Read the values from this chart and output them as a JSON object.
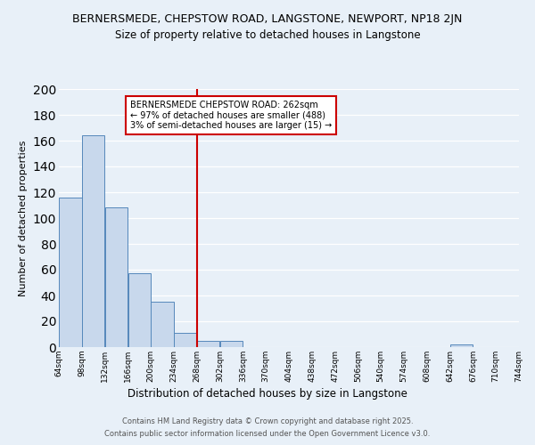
{
  "title": "BERNERSMEDE, CHEPSTOW ROAD, LANGSTONE, NEWPORT, NP18 2JN",
  "subtitle": "Size of property relative to detached houses in Langstone",
  "xlabel": "Distribution of detached houses by size in Langstone",
  "ylabel": "Number of detached properties",
  "bar_values": [
    116,
    164,
    108,
    57,
    35,
    11,
    5,
    5,
    0,
    0,
    0,
    0,
    0,
    0,
    0,
    0,
    0,
    2,
    0,
    0
  ],
  "bin_edges": [
    64,
    98,
    132,
    166,
    200,
    234,
    268,
    302,
    336,
    370,
    404,
    438,
    472,
    506,
    540,
    574,
    608,
    642,
    676,
    710,
    744
  ],
  "tick_labels": [
    "64sqm",
    "98sqm",
    "132sqm",
    "166sqm",
    "200sqm",
    "234sqm",
    "268sqm",
    "302sqm",
    "336sqm",
    "370sqm",
    "404sqm",
    "438sqm",
    "472sqm",
    "506sqm",
    "540sqm",
    "574sqm",
    "608sqm",
    "642sqm",
    "676sqm",
    "710sqm",
    "744sqm"
  ],
  "bar_color": "#c8d8ec",
  "bar_edge_color": "#5588bb",
  "vline_x": 268,
  "vline_color": "#cc0000",
  "ylim": [
    0,
    200
  ],
  "yticks": [
    0,
    20,
    40,
    60,
    80,
    100,
    120,
    140,
    160,
    180,
    200
  ],
  "annotation_title": "BERNERSMEDE CHEPSTOW ROAD: 262sqm",
  "annotation_line1": "← 97% of detached houses are smaller (488)",
  "annotation_line2": "3% of semi-detached houses are larger (15) →",
  "footer1": "Contains HM Land Registry data © Crown copyright and database right 2025.",
  "footer2": "Contains public sector information licensed under the Open Government Licence v3.0.",
  "background_color": "#e8f0f8",
  "plot_bg_color": "#e8f0f8",
  "grid_color": "#ffffff",
  "title_fontsize": 9,
  "subtitle_fontsize": 8.5
}
